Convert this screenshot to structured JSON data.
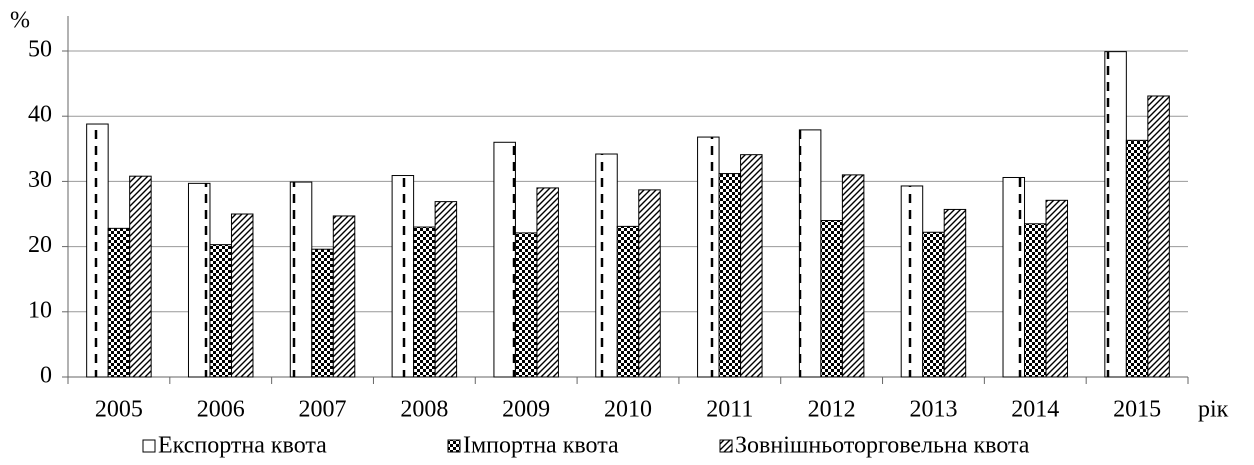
{
  "chart_data": {
    "type": "bar",
    "y_label": "%",
    "x_label": "рік",
    "categories": [
      "2005",
      "2006",
      "2007",
      "2008",
      "2009",
      "2010",
      "2011",
      "2012",
      "2013",
      "2014",
      "2015"
    ],
    "series": [
      {
        "name": "Експортна квота",
        "color": "#000000",
        "values": [
          38.8,
          29.7,
          29.9,
          30.9,
          36.0,
          34.2,
          36.8,
          37.9,
          29.3,
          30.6,
          49.9
        ]
      },
      {
        "name": "Імпортна квота",
        "color": "#000000",
        "values": [
          22.8,
          20.3,
          19.6,
          23.0,
          22.1,
          23.1,
          31.2,
          24.0,
          22.2,
          23.5,
          36.3
        ]
      },
      {
        "name": "Зовнішньоторговельна квота",
        "color": "#000000",
        "values": [
          30.8,
          25.0,
          24.7,
          26.9,
          29.0,
          28.7,
          34.1,
          31.0,
          25.7,
          27.1,
          43.1
        ]
      }
    ],
    "ylim": [
      0,
      50
    ],
    "yticks": [
      0,
      10,
      20,
      30,
      40,
      50
    ],
    "grid": true,
    "legend": "bottom"
  }
}
